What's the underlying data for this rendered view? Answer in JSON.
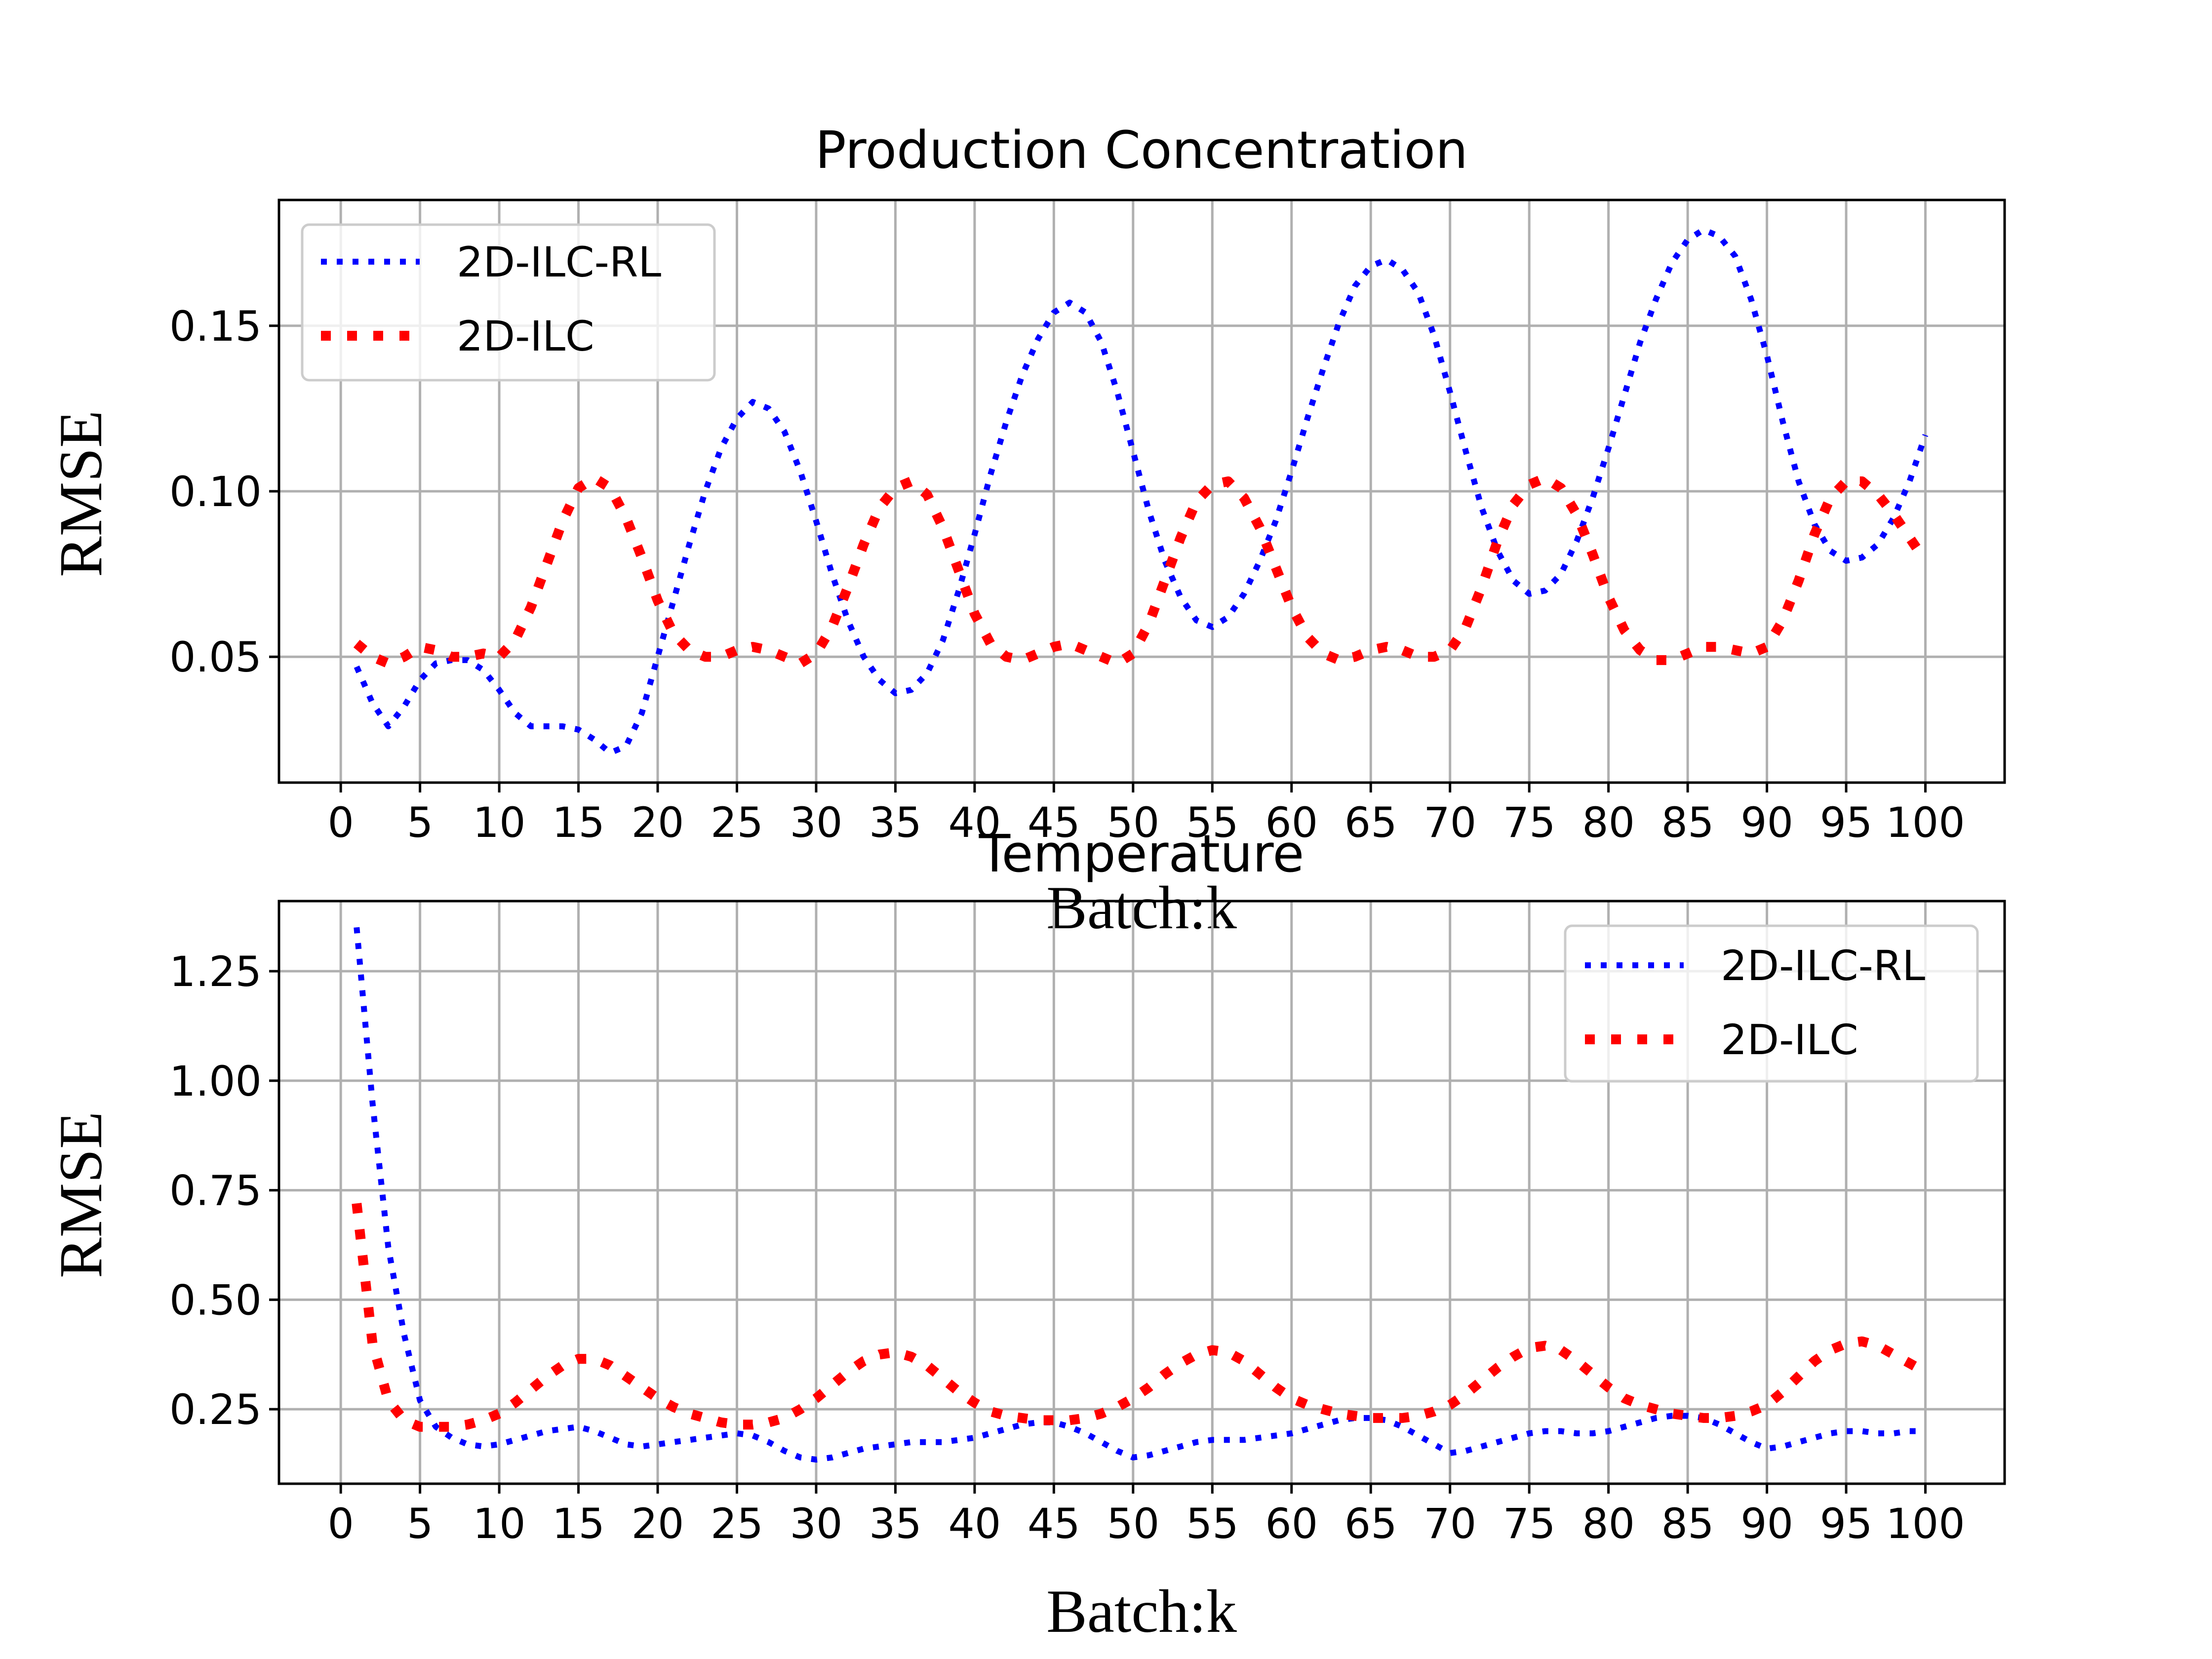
{
  "colors": {
    "rl": "#0000ff",
    "ilc": "#ff0000"
  },
  "chart_data": [
    {
      "type": "line",
      "title": "Production Concentration",
      "xlabel": "Batch:k",
      "ylabel": "RMSE",
      "xlim": [
        -3.9,
        105
      ],
      "ylim": [
        0.012,
        0.188
      ],
      "xticks": [
        0,
        5,
        10,
        15,
        20,
        25,
        30,
        35,
        40,
        45,
        50,
        55,
        60,
        65,
        70,
        75,
        80,
        85,
        90,
        95,
        100
      ],
      "yticks": [
        0.05,
        0.1,
        0.15
      ],
      "ytick_labels": [
        "0.05",
        "0.10",
        "0.15"
      ],
      "grid": true,
      "legend_position": "top-left",
      "series": [
        {
          "name": "2D-ILC-RL",
          "color": "#0000ff",
          "style": "dotted",
          "x": [
            1,
            2,
            3,
            4,
            5,
            6,
            7,
            8,
            9,
            10,
            11,
            12,
            13,
            14,
            15,
            16,
            17,
            18,
            19,
            20,
            21,
            22,
            23,
            24,
            25,
            26,
            27,
            28,
            29,
            30,
            31,
            32,
            33,
            34,
            35,
            36,
            37,
            38,
            39,
            40,
            41,
            42,
            43,
            44,
            45,
            46,
            47,
            48,
            49,
            50,
            51,
            52,
            53,
            54,
            55,
            56,
            57,
            58,
            59,
            60,
            61,
            62,
            63,
            64,
            65,
            66,
            67,
            68,
            69,
            70,
            71,
            72,
            73,
            74,
            75,
            76,
            77,
            78,
            79,
            80,
            81,
            82,
            83,
            84,
            85,
            86,
            87,
            88,
            89,
            90,
            91,
            92,
            93,
            94,
            95,
            96,
            97,
            98,
            99,
            100
          ],
          "y": [
            0.047,
            0.036,
            0.029,
            0.035,
            0.043,
            0.048,
            0.049,
            0.049,
            0.046,
            0.04,
            0.033,
            0.029,
            0.029,
            0.029,
            0.028,
            0.025,
            0.021,
            0.023,
            0.033,
            0.05,
            0.067,
            0.084,
            0.1,
            0.113,
            0.122,
            0.127,
            0.125,
            0.118,
            0.106,
            0.091,
            0.075,
            0.061,
            0.05,
            0.043,
            0.039,
            0.04,
            0.045,
            0.055,
            0.07,
            0.087,
            0.105,
            0.121,
            0.135,
            0.146,
            0.154,
            0.157,
            0.154,
            0.145,
            0.13,
            0.112,
            0.094,
            0.079,
            0.068,
            0.061,
            0.059,
            0.062,
            0.069,
            0.079,
            0.091,
            0.106,
            0.122,
            0.137,
            0.151,
            0.162,
            0.168,
            0.17,
            0.167,
            0.16,
            0.147,
            0.13,
            0.112,
            0.095,
            0.082,
            0.073,
            0.069,
            0.07,
            0.075,
            0.085,
            0.098,
            0.113,
            0.129,
            0.145,
            0.158,
            0.169,
            0.176,
            0.179,
            0.177,
            0.171,
            0.158,
            0.141,
            0.121,
            0.103,
            0.09,
            0.082,
            0.079,
            0.08,
            0.084,
            0.092,
            0.103,
            0.117
          ]
        },
        {
          "name": "2D-ILC",
          "color": "#ff0000",
          "style": "dotted",
          "x": [
            1,
            2,
            3,
            4,
            5,
            6,
            7,
            8,
            9,
            10,
            11,
            12,
            13,
            14,
            15,
            16,
            17,
            18,
            19,
            20,
            21,
            22,
            23,
            24,
            25,
            26,
            27,
            28,
            29,
            30,
            31,
            32,
            33,
            34,
            35,
            36,
            37,
            38,
            39,
            40,
            41,
            42,
            43,
            44,
            45,
            46,
            47,
            48,
            49,
            50,
            51,
            52,
            53,
            54,
            55,
            56,
            57,
            58,
            59,
            60,
            61,
            62,
            63,
            64,
            65,
            66,
            67,
            68,
            69,
            70,
            71,
            72,
            73,
            74,
            75,
            76,
            77,
            78,
            79,
            80,
            81,
            82,
            83,
            84,
            85,
            86,
            87,
            88,
            89,
            90,
            91,
            92,
            93,
            94,
            95,
            96,
            97,
            98,
            99,
            100
          ],
          "y": [
            0.054,
            0.05,
            0.048,
            0.05,
            0.053,
            0.052,
            0.05,
            0.05,
            0.051,
            0.05,
            0.055,
            0.065,
            0.078,
            0.091,
            0.101,
            0.104,
            0.101,
            0.092,
            0.08,
            0.067,
            0.057,
            0.052,
            0.05,
            0.05,
            0.052,
            0.053,
            0.052,
            0.05,
            0.048,
            0.051,
            0.059,
            0.071,
            0.084,
            0.095,
            0.101,
            0.103,
            0.099,
            0.089,
            0.076,
            0.063,
            0.054,
            0.05,
            0.049,
            0.051,
            0.053,
            0.054,
            0.052,
            0.05,
            0.048,
            0.051,
            0.06,
            0.073,
            0.086,
            0.097,
            0.102,
            0.103,
            0.098,
            0.089,
            0.077,
            0.065,
            0.056,
            0.051,
            0.049,
            0.05,
            0.052,
            0.053,
            0.052,
            0.05,
            0.05,
            0.052,
            0.059,
            0.071,
            0.085,
            0.096,
            0.102,
            0.104,
            0.101,
            0.093,
            0.081,
            0.068,
            0.058,
            0.052,
            0.049,
            0.049,
            0.051,
            0.053,
            0.053,
            0.052,
            0.051,
            0.053,
            0.061,
            0.073,
            0.087,
            0.098,
            0.103,
            0.103,
            0.099,
            0.093,
            0.086,
            0.079
          ]
        }
      ]
    },
    {
      "type": "line",
      "title": "Temperature",
      "xlabel": "Batch:k",
      "ylabel": "RMSE",
      "xlim": [
        -3.9,
        105
      ],
      "ylim": [
        0.08,
        1.41
      ],
      "xticks": [
        0,
        5,
        10,
        15,
        20,
        25,
        30,
        35,
        40,
        45,
        50,
        55,
        60,
        65,
        70,
        75,
        80,
        85,
        90,
        95,
        100
      ],
      "yticks": [
        0.25,
        0.5,
        0.75,
        1.0,
        1.25
      ],
      "ytick_labels": [
        "0.25",
        "0.50",
        "0.75",
        "1.00",
        "1.25"
      ],
      "grid": true,
      "legend_position": "top-right",
      "series": [
        {
          "name": "2D-ILC-RL",
          "color": "#0000ff",
          "style": "dotted",
          "x": [
            1,
            2,
            3,
            4,
            5,
            6,
            7,
            8,
            9,
            10,
            11,
            12,
            13,
            14,
            15,
            16,
            17,
            18,
            19,
            20,
            21,
            22,
            23,
            24,
            25,
            26,
            27,
            28,
            29,
            30,
            31,
            32,
            33,
            34,
            35,
            36,
            37,
            38,
            39,
            40,
            41,
            42,
            43,
            44,
            45,
            46,
            47,
            48,
            49,
            50,
            51,
            52,
            53,
            54,
            55,
            56,
            57,
            58,
            59,
            60,
            61,
            62,
            63,
            64,
            65,
            66,
            67,
            68,
            69,
            70,
            71,
            72,
            73,
            74,
            75,
            76,
            77,
            78,
            79,
            80,
            81,
            82,
            83,
            84,
            85,
            86,
            87,
            88,
            89,
            90,
            91,
            92,
            93,
            94,
            95,
            96,
            97,
            98,
            99,
            100
          ],
          "y": [
            1.35,
            0.95,
            0.62,
            0.42,
            0.27,
            0.21,
            0.185,
            0.17,
            0.165,
            0.17,
            0.18,
            0.19,
            0.2,
            0.205,
            0.21,
            0.2,
            0.185,
            0.17,
            0.165,
            0.17,
            0.175,
            0.18,
            0.185,
            0.19,
            0.195,
            0.19,
            0.175,
            0.155,
            0.14,
            0.135,
            0.14,
            0.15,
            0.16,
            0.165,
            0.17,
            0.175,
            0.175,
            0.175,
            0.18,
            0.185,
            0.195,
            0.205,
            0.215,
            0.22,
            0.22,
            0.21,
            0.195,
            0.175,
            0.155,
            0.14,
            0.145,
            0.155,
            0.165,
            0.175,
            0.18,
            0.18,
            0.18,
            0.185,
            0.19,
            0.195,
            0.205,
            0.215,
            0.225,
            0.23,
            0.23,
            0.225,
            0.21,
            0.19,
            0.17,
            0.15,
            0.155,
            0.165,
            0.175,
            0.185,
            0.195,
            0.2,
            0.2,
            0.195,
            0.195,
            0.2,
            0.21,
            0.22,
            0.23,
            0.235,
            0.235,
            0.23,
            0.215,
            0.195,
            0.175,
            0.16,
            0.165,
            0.175,
            0.185,
            0.195,
            0.2,
            0.2,
            0.195,
            0.195,
            0.2,
            0.2
          ]
        },
        {
          "name": "2D-ILC",
          "color": "#ff0000",
          "style": "dotted",
          "x": [
            1,
            2,
            3,
            4,
            5,
            6,
            7,
            8,
            9,
            10,
            11,
            12,
            13,
            14,
            15,
            16,
            17,
            18,
            19,
            20,
            21,
            22,
            23,
            24,
            25,
            26,
            27,
            28,
            29,
            30,
            31,
            32,
            33,
            34,
            35,
            36,
            37,
            38,
            39,
            40,
            41,
            42,
            43,
            44,
            45,
            46,
            47,
            48,
            49,
            50,
            51,
            52,
            53,
            54,
            55,
            56,
            57,
            58,
            59,
            60,
            61,
            62,
            63,
            64,
            65,
            66,
            67,
            68,
            69,
            70,
            71,
            72,
            73,
            74,
            75,
            76,
            77,
            78,
            79,
            80,
            81,
            82,
            83,
            84,
            85,
            86,
            87,
            88,
            89,
            90,
            91,
            92,
            93,
            94,
            95,
            96,
            97,
            98,
            99,
            100
          ],
          "y": [
            0.72,
            0.4,
            0.27,
            0.225,
            0.21,
            0.21,
            0.21,
            0.215,
            0.225,
            0.24,
            0.265,
            0.295,
            0.325,
            0.35,
            0.365,
            0.365,
            0.35,
            0.325,
            0.3,
            0.275,
            0.255,
            0.24,
            0.23,
            0.22,
            0.215,
            0.215,
            0.22,
            0.23,
            0.25,
            0.275,
            0.305,
            0.335,
            0.36,
            0.375,
            0.38,
            0.37,
            0.35,
            0.32,
            0.29,
            0.265,
            0.245,
            0.235,
            0.23,
            0.225,
            0.225,
            0.225,
            0.23,
            0.24,
            0.255,
            0.275,
            0.3,
            0.33,
            0.355,
            0.375,
            0.385,
            0.38,
            0.36,
            0.33,
            0.3,
            0.275,
            0.26,
            0.25,
            0.24,
            0.235,
            0.23,
            0.23,
            0.23,
            0.235,
            0.245,
            0.26,
            0.285,
            0.315,
            0.345,
            0.37,
            0.39,
            0.395,
            0.385,
            0.36,
            0.33,
            0.3,
            0.275,
            0.26,
            0.25,
            0.24,
            0.235,
            0.23,
            0.23,
            0.235,
            0.245,
            0.26,
            0.29,
            0.325,
            0.36,
            0.385,
            0.4,
            0.405,
            0.395,
            0.375,
            0.355,
            0.335
          ]
        }
      ]
    }
  ]
}
